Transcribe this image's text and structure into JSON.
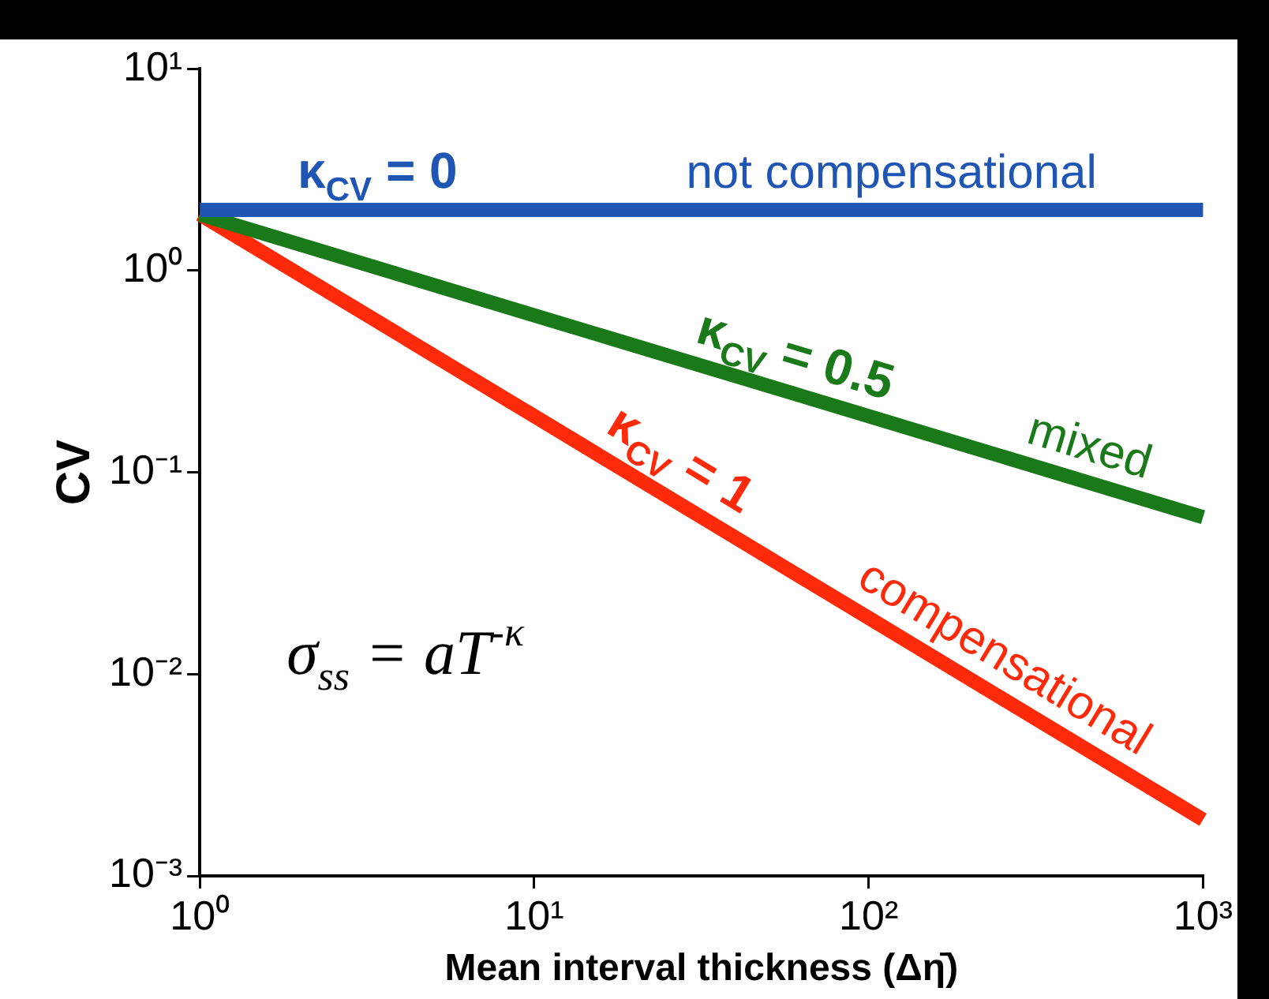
{
  "chart_data": {
    "type": "line",
    "xlabel": "Mean interval thickness (Δη̄)",
    "ylabel": "CV",
    "log": "xy",
    "grid": false,
    "legend": false,
    "marker": "none",
    "line_style": "solid",
    "xlim": [
      1,
      1000
    ],
    "ylim": [
      0.001,
      10
    ],
    "xticks": [
      {
        "value": 1,
        "label": "10⁰"
      },
      {
        "value": 10,
        "label": "10¹"
      },
      {
        "value": 100,
        "label": "10²"
      },
      {
        "value": 1000,
        "label": "10³"
      }
    ],
    "yticks": [
      {
        "value": 0.001,
        "label": "10⁻³"
      },
      {
        "value": 0.01,
        "label": "10⁻²"
      },
      {
        "value": 0.1,
        "label": "10⁻¹"
      },
      {
        "value": 1,
        "label": "10⁰"
      },
      {
        "value": 10,
        "label": "10¹"
      }
    ],
    "series": [
      {
        "color": "#1f55b3",
        "x": [
          1,
          10,
          100,
          1000
        ],
        "values": [
          2,
          2,
          2,
          2
        ]
      },
      {
        "color": "#1a7a1a",
        "x": [
          1,
          10,
          100,
          1000
        ],
        "values": [
          1.9,
          0.6,
          0.19,
          0.06
        ]
      },
      {
        "color": "#ff2a0a",
        "x": [
          1,
          10,
          100,
          1000
        ],
        "values": [
          1.9,
          0.19,
          0.019,
          0.0019
        ]
      }
    ],
    "annotations": [
      {
        "text": "κ$_{CV}$ = 0",
        "x": 3.4,
        "y": 2
      },
      {
        "text": "not compensational",
        "x": 117,
        "y": 2
      },
      {
        "text": "κ$_{CV}$ = 0.5",
        "x": 56,
        "y": 0.25
      },
      {
        "text": "mixed",
        "x": 426,
        "y": 0.09
      },
      {
        "text": "κ$_{CV}$ = 1",
        "x": 24,
        "y": 0.08
      },
      {
        "text": "compensational",
        "x": 224,
        "y": 0.0084
      },
      "σ$_{ss}$ = aT$^{-κ}$"
    ]
  }
}
